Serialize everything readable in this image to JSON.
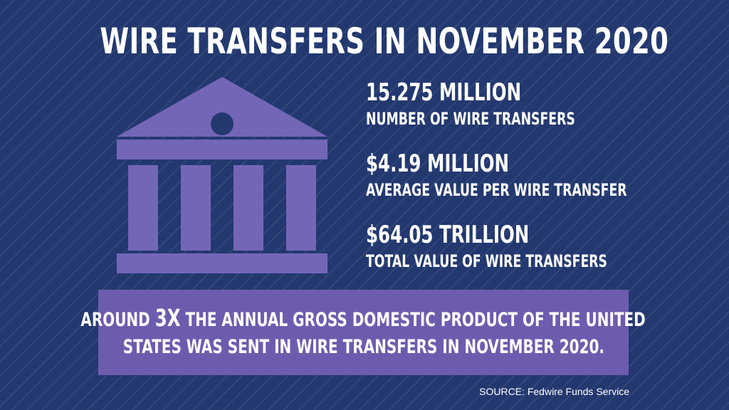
{
  "title": "WIRE TRANSFERS IN NOVEMBER 2020",
  "icon": "bank-building-icon",
  "stats": [
    {
      "value": "15.275 MILLION",
      "label": "NUMBER OF WIRE TRANSFERS"
    },
    {
      "value": "$4.19 MILLION",
      "label": "AVERAGE VALUE PER WIRE TRANSFER"
    },
    {
      "value": "$64.05 TRILLION",
      "label": "TOTAL VALUE OF WIRE TRANSFERS"
    }
  ],
  "callout": {
    "line1_prefix": "AROUND ",
    "line1_emphasis": "3X",
    "line1_suffix": " THE ANNUAL GROSS DOMESTIC PRODUCT OF THE UNITED",
    "line2": "STATES WAS SENT IN WIRE TRANSFERS IN NOVEMBER 2020."
  },
  "source": "SOURCE: Fedwire Funds Service",
  "colors": {
    "background": "#22386f",
    "icon": "#7466b7",
    "callout_bg": "#6d5cae",
    "text": "#ffffff"
  }
}
